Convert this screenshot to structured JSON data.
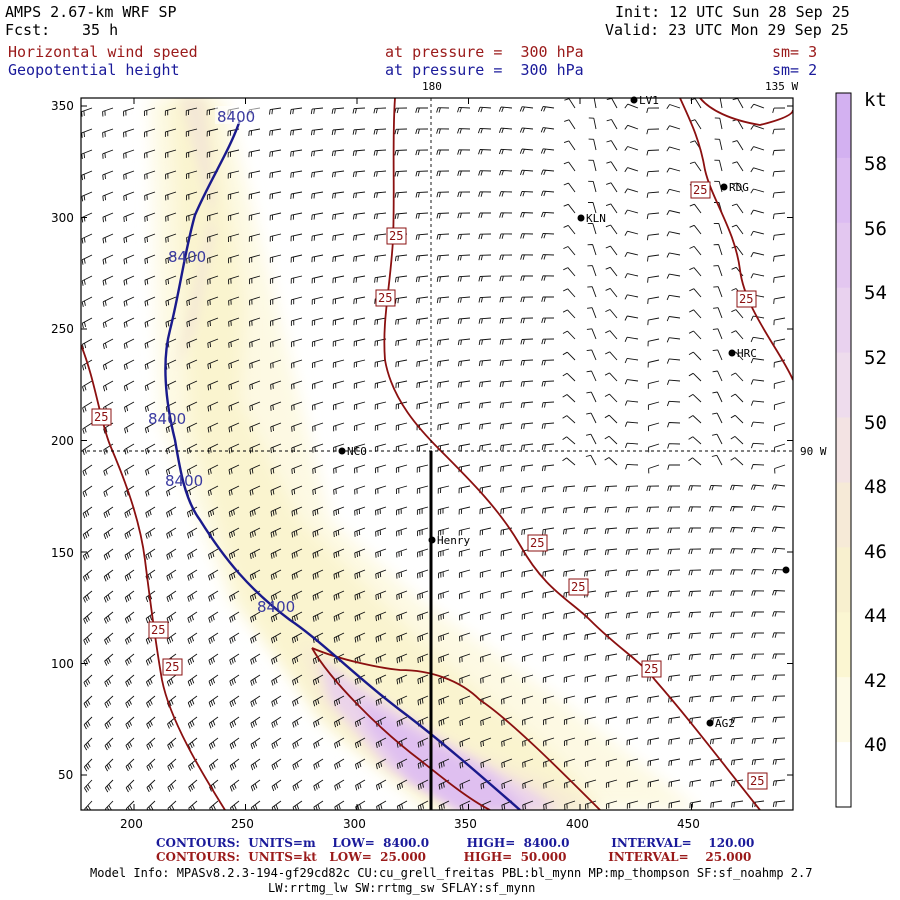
{
  "header": {
    "model": "AMPS 2.67-km WRF SP",
    "fcst_label": "Fcst:",
    "fcst_value": "35 h",
    "init": "Init: 12 UTC Sun 28 Sep 25",
    "valid": "Valid: 23 UTC Mon 29 Sep 25",
    "field1": "Horizontal wind speed",
    "field2": "Geopotential height",
    "level1": "at pressure =  300 hPa",
    "level2": "at pressure =  300 hPa",
    "sm1": "sm= 3",
    "sm2": "sm= 2"
  },
  "map": {
    "lon_labels": [
      "180",
      "135 W",
      "90 W"
    ],
    "x_ticks": [
      "200",
      "250",
      "300",
      "350",
      "400",
      "450"
    ],
    "y_ticks": [
      "350",
      "300",
      "250",
      "200",
      "150",
      "100",
      "50"
    ],
    "stations": [
      "LV1",
      "RDG",
      "KLN",
      "HRC",
      "NCO",
      "Henry",
      "AG2",
      ""
    ],
    "height_contour_label": "8400",
    "speed_contour_label": "25"
  },
  "colorbar": {
    "unit": "kt",
    "ticks": [
      "58",
      "56",
      "54",
      "52",
      "50",
      "48",
      "46",
      "44",
      "42",
      "40"
    ],
    "colors": [
      "#d3b1f1",
      "#dcbcf2",
      "#e3c7f0",
      "#e9d2ef",
      "#eedced",
      "#f3e3e3",
      "#f6ead7",
      "#f8f0cf",
      "#fbf6d2",
      "#fdfae6",
      "#ffffff"
    ]
  },
  "footer": {
    "contours1": "CONTOURS:  UNITS=m    LOW=  8400.0         HIGH=  8400.0          INTERVAL=    120.00",
    "contours2": "CONTOURS:  UNITS=kt   LOW=  25.000         HIGH=  50.000          INTERVAL=    25.000",
    "info1": "Model Info: MPASv8.2.3-194-gf29cd82c CU:cu_grell_freitas PBL:bl_mynn MP:mp_thompson SF:sf_noahmp 2.7",
    "info2": "LW:rrtmg_lw SW:rrtmg_sw SFLAY:sf_mynn"
  }
}
